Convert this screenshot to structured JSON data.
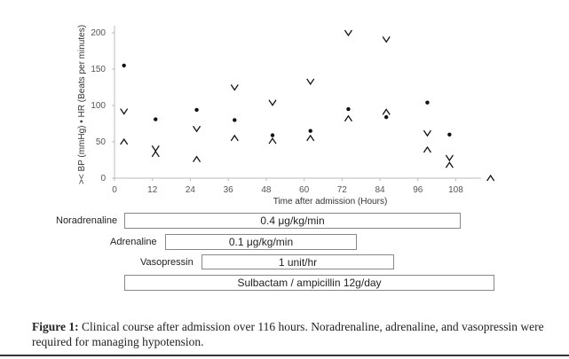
{
  "chart_data": {
    "type": "scatter",
    "xlabel": "Time after admission (Hours)",
    "ylabel": ">< BP (mmHg)   • HR (Beats per minutes)",
    "xlim": [
      0,
      116
    ],
    "ylim": [
      0,
      200
    ],
    "x_ticks": [
      0,
      12,
      24,
      36,
      48,
      60,
      72,
      84,
      96,
      108
    ],
    "y_ticks": [
      0,
      50,
      100,
      150,
      200
    ],
    "grid": false,
    "series": [
      {
        "name": "HR",
        "marker": "dot",
        "points": [
          [
            3,
            155
          ],
          [
            13,
            81
          ],
          [
            26,
            94
          ],
          [
            38,
            80
          ],
          [
            50,
            59
          ],
          [
            62,
            65
          ],
          [
            74,
            95
          ],
          [
            86,
            84
          ],
          [
            99,
            104
          ],
          [
            106,
            60
          ]
        ]
      },
      {
        "name": "BP systolic",
        "marker": "v",
        "points": [
          [
            3,
            92
          ],
          [
            13,
            41
          ],
          [
            26,
            68
          ],
          [
            38,
            125
          ],
          [
            50,
            104
          ],
          [
            62,
            133
          ],
          [
            74,
            200
          ],
          [
            86,
            191
          ],
          [
            99,
            62
          ],
          [
            106,
            28
          ]
        ]
      },
      {
        "name": "BP diastolic",
        "marker": "^",
        "points": [
          [
            3,
            50
          ],
          [
            13,
            33
          ],
          [
            26,
            26
          ],
          [
            38,
            55
          ],
          [
            50,
            51
          ],
          [
            62,
            55
          ],
          [
            74,
            82
          ],
          [
            86,
            91
          ],
          [
            99,
            39
          ],
          [
            106,
            18
          ],
          [
            119,
            0
          ]
        ]
      }
    ]
  },
  "medications": [
    {
      "name": "Noradrenaline",
      "dose": "0.4 μg/kg/min"
    },
    {
      "name": "Adrenaline",
      "dose": "0.1 μg/kg/min"
    },
    {
      "name": "Vasopressin",
      "dose": "1 unit/hr"
    },
    {
      "name": "",
      "dose": "Sulbactam / ampicillin 12g/day"
    }
  ],
  "caption": {
    "label": "Figure 1:",
    "text": " Clinical course after admission over 116 hours. Noradrenaline, adrenaline, and vasopressin were required for managing hypotension."
  }
}
